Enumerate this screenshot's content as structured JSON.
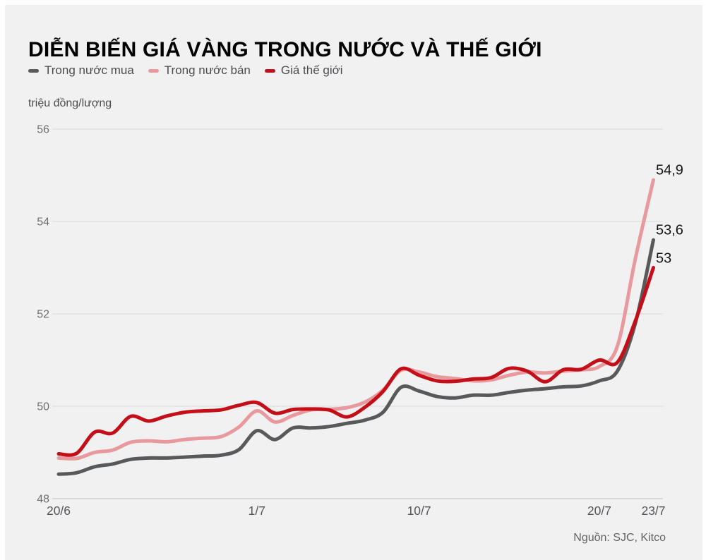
{
  "page": {
    "title": "DIỄN BIẾN GIÁ VÀNG TRONG NƯỚC VÀ THẾ GIỚI",
    "source": "Nguồn: SJC, Kitco"
  },
  "legend": {
    "items": [
      {
        "label": "Trong nước mua",
        "color": "#58595b"
      },
      {
        "label": "Trong nước bán",
        "color": "#e8999e"
      },
      {
        "label": "Giá thế giới",
        "color": "#c40e18"
      }
    ]
  },
  "chart_data": {
    "type": "line",
    "title": "DIỄN BIẾN GIÁ VÀNG TRONG NƯỚC VÀ THẾ GIỚI",
    "unit_label": "triệu đồng/lượng",
    "ylim": [
      48,
      56
    ],
    "y_ticks": [
      48,
      50,
      52,
      54,
      56
    ],
    "grid": "horizontal",
    "legend_position": "top",
    "x_range_days": 33,
    "x_tick_labels": [
      "20/6",
      "1/7",
      "10/7",
      "20/7",
      "23/7"
    ],
    "x_tick_day_index": [
      0,
      11,
      20,
      30,
      33
    ],
    "series": [
      {
        "name": "Trong nước mua",
        "color": "#58595b",
        "end_label": "53,6",
        "end_value": 53.6,
        "values": [
          48.53,
          48.56,
          48.69,
          48.75,
          48.85,
          48.88,
          48.88,
          48.9,
          48.92,
          48.94,
          49.06,
          49.47,
          49.28,
          49.53,
          49.53,
          49.56,
          49.63,
          49.7,
          49.87,
          50.41,
          50.33,
          50.21,
          50.18,
          50.24,
          50.24,
          50.3,
          50.35,
          50.38,
          50.42,
          50.44,
          50.55,
          50.76,
          51.8,
          53.6
        ]
      },
      {
        "name": "Trong nước bán",
        "color": "#e8999e",
        "end_label": "54,9",
        "end_value": 54.9,
        "values": [
          48.88,
          48.87,
          49.0,
          49.05,
          49.22,
          49.25,
          49.23,
          49.28,
          49.31,
          49.34,
          49.55,
          49.9,
          49.66,
          49.8,
          49.92,
          49.93,
          49.97,
          50.09,
          50.35,
          50.78,
          50.74,
          50.64,
          50.6,
          50.55,
          50.57,
          50.67,
          50.74,
          50.72,
          50.76,
          50.79,
          50.86,
          51.3,
          53.2,
          54.9
        ]
      },
      {
        "name": "Giá thế giới",
        "color": "#c40e18",
        "end_label": "53",
        "end_value": 53.0,
        "values": [
          48.97,
          48.98,
          49.44,
          49.42,
          49.78,
          49.68,
          49.79,
          49.87,
          49.9,
          49.92,
          50.02,
          50.08,
          49.85,
          49.93,
          49.94,
          49.92,
          49.77,
          49.98,
          50.32,
          50.81,
          50.67,
          50.55,
          50.54,
          50.59,
          50.62,
          50.82,
          50.76,
          50.53,
          50.79,
          50.8,
          51.0,
          50.95,
          51.85,
          53.0
        ]
      }
    ]
  }
}
